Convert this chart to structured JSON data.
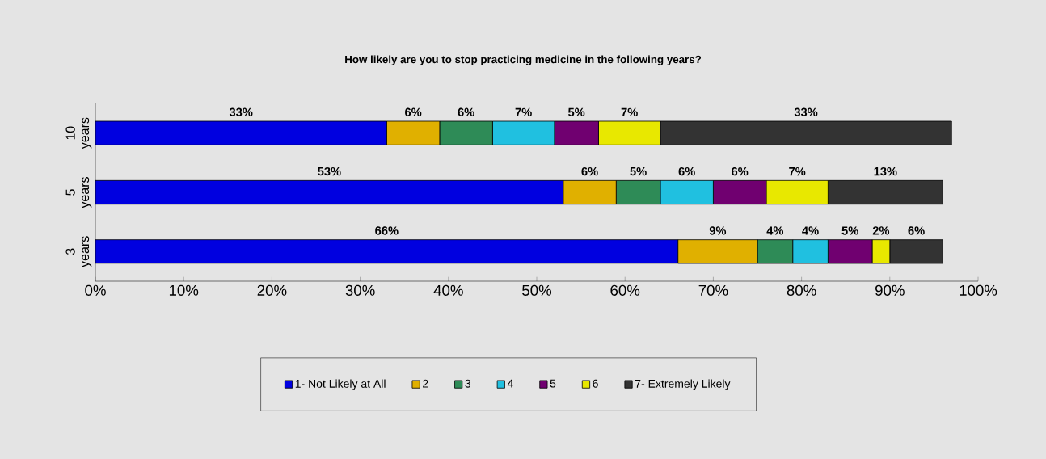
{
  "chart_data": {
    "type": "bar",
    "orientation": "horizontal",
    "stacked": true,
    "title": "How likely are you to stop practicing medicine in the following years?",
    "categories": [
      "10 years",
      "5 years",
      "3 years"
    ],
    "xlim": [
      0,
      100
    ],
    "xticks": [
      {
        "value": 0,
        "label": "0%"
      },
      {
        "value": 10,
        "label": "10%"
      },
      {
        "value": 20,
        "label": "20%"
      },
      {
        "value": 30,
        "label": "30%"
      },
      {
        "value": 40,
        "label": "40%"
      },
      {
        "value": 50,
        "label": "50%"
      },
      {
        "value": 60,
        "label": "60%"
      },
      {
        "value": 70,
        "label": "70%"
      },
      {
        "value": 80,
        "label": "80%"
      },
      {
        "value": 90,
        "label": "90%"
      },
      {
        "value": 100,
        "label": "100%"
      }
    ],
    "legend": "bottom",
    "series": [
      {
        "name": "1- Not Likely at All",
        "color": "#0000e0",
        "values": [
          33,
          53,
          66
        ],
        "value_labels": [
          "33%",
          "53%",
          "66%"
        ]
      },
      {
        "name": "2",
        "color": "#e0b000",
        "values": [
          6,
          6,
          9
        ],
        "value_labels": [
          "6%",
          "6%",
          "9%"
        ]
      },
      {
        "name": "3",
        "color": "#2e8b57",
        "values": [
          6,
          5,
          4
        ],
        "value_labels": [
          "6%",
          "5%",
          "4%"
        ]
      },
      {
        "name": "4",
        "color": "#20c0e0",
        "values": [
          7,
          6,
          4
        ],
        "value_labels": [
          "7%",
          "6%",
          "4%"
        ]
      },
      {
        "name": "5",
        "color": "#700070",
        "values": [
          5,
          6,
          5
        ],
        "value_labels": [
          "5%",
          "6%",
          "5%"
        ]
      },
      {
        "name": "6",
        "color": "#e8e800",
        "values": [
          7,
          7,
          2
        ],
        "value_labels": [
          "7%",
          "7%",
          "2%"
        ]
      },
      {
        "name": "7- Extremely Likely",
        "color": "#333333",
        "values": [
          33,
          13,
          6
        ],
        "value_labels": [
          "33%",
          "13%",
          "6%"
        ]
      }
    ]
  }
}
